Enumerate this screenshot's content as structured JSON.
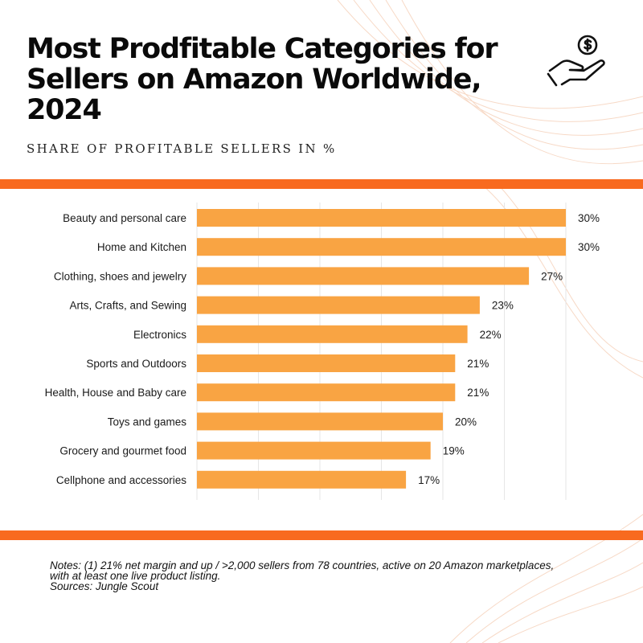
{
  "header": {
    "title_lines": [
      "Most Prodfitable Categories for",
      "Sellers on Amazon Worldwide,",
      "2024"
    ],
    "subtitle": "SHARE OF PROFITABLE SELLERS IN %",
    "icon": "money-hand-icon"
  },
  "colors": {
    "accent_stripe": "#f86a1f",
    "bar": "#f9a443",
    "grid": "#e6e6e6",
    "background_waves": "#f7d9c6"
  },
  "chart_data": {
    "type": "bar",
    "orientation": "horizontal",
    "title": "",
    "xlabel": "",
    "ylabel": "",
    "categories": [
      "Beauty and personal care",
      "Home and Kitchen",
      "Clothing, shoes and jewelry",
      "Arts, Crafts, and Sewing",
      "Electronics",
      "Sports and Outdoors",
      "Health, House and Baby care",
      "Toys and games",
      "Grocery and gourmet food",
      "Cellphone and accessories"
    ],
    "values": [
      30,
      30,
      27,
      23,
      22,
      21,
      21,
      20,
      19,
      17
    ],
    "value_labels": [
      "30%",
      "30%",
      "27%",
      "23%",
      "22%",
      "21%",
      "21%",
      "20%",
      "19%",
      "17%"
    ],
    "xlim": [
      0,
      30
    ],
    "grid": true,
    "legend": "none"
  },
  "notes": {
    "line1": "Notes:   (1) 21% net margin and up / >2,000 sellers from 78 countries, active on 20 Amazon marketplaces,",
    "line2": "with at least one live product listing.",
    "line3": "Sources: Jungle Scout"
  }
}
